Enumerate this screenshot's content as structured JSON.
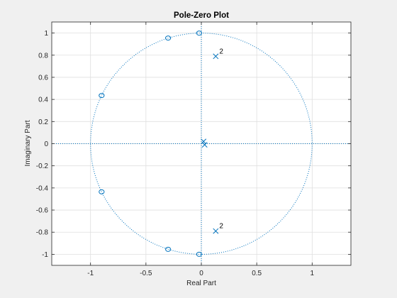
{
  "chart_data": {
    "type": "scatter",
    "title": "Pole-Zero Plot",
    "xlabel": "Real Part",
    "ylabel": "Imaginary Part",
    "xlim": [
      -1.35,
      1.35
    ],
    "ylim": [
      -1.1,
      1.1
    ],
    "x_ticks": [
      -1,
      -0.5,
      0,
      0.5,
      1
    ],
    "x_tick_labels": [
      "-1",
      "-0.5",
      "0",
      "0.5",
      "1"
    ],
    "y_ticks": [
      -1,
      -0.8,
      -0.6,
      -0.4,
      -0.2,
      0,
      0.2,
      0.4,
      0.6,
      0.8,
      1
    ],
    "y_tick_labels": [
      "-1",
      "-0.8",
      "-0.6",
      "-0.4",
      "-0.2",
      "0",
      "0.2",
      "0.4",
      "0.6",
      "0.8",
      "1"
    ],
    "grid": true,
    "unit_circle": true,
    "zeros": [
      {
        "x": -0.02,
        "y": 1.0
      },
      {
        "x": -0.3,
        "y": 0.955
      },
      {
        "x": -0.9,
        "y": 0.435
      },
      {
        "x": -0.9,
        "y": -0.435
      },
      {
        "x": -0.3,
        "y": -0.955
      },
      {
        "x": -0.02,
        "y": -1.0
      }
    ],
    "poles": [
      {
        "x": 0.13,
        "y": 0.79,
        "multiplicity": "2"
      },
      {
        "x": 0.13,
        "y": -0.79,
        "multiplicity": "2"
      },
      {
        "x": 0.02,
        "y": 0.02
      },
      {
        "x": 0.03,
        "y": -0.01
      }
    ],
    "colors": {
      "series": "#0072bd",
      "grid": "#dfdfdf",
      "axes": "#262626",
      "figure_bg": "#f0f0f0",
      "axes_bg": "#ffffff"
    }
  }
}
